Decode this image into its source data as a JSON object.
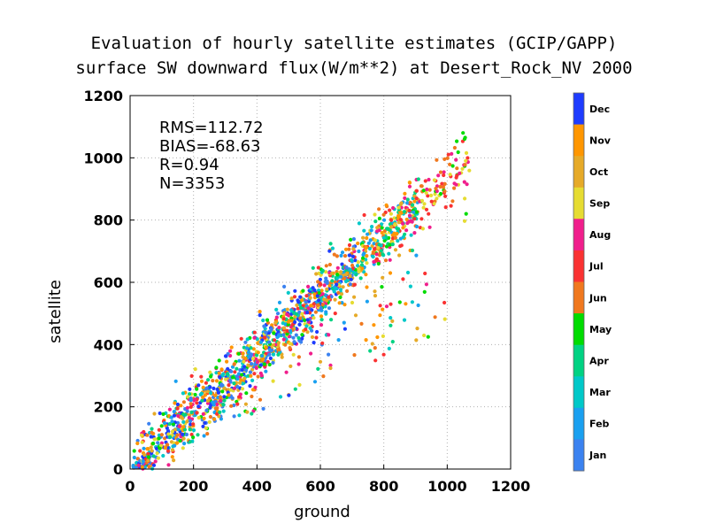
{
  "chart_data": {
    "type": "scatter",
    "title": "Evaluation of hourly satellite estimates (GCIP/GAPP)",
    "subtitle": "surface SW downward flux(W/m**2) at Desert_Rock_NV 2000",
    "xlabel": "ground",
    "ylabel": "satellite",
    "xlim": [
      0,
      1200
    ],
    "ylim": [
      0,
      1200
    ],
    "xticks": [
      "0",
      "200",
      "400",
      "600",
      "800",
      "1000",
      "1200"
    ],
    "yticks": [
      "0",
      "200",
      "400",
      "600",
      "800",
      "1000",
      "1200"
    ],
    "grid": true,
    "stats": [
      "RMS=112.72",
      "BIAS=-68.63",
      "R=0.94",
      "N=3353"
    ],
    "colorbar": {
      "placement": "right",
      "labels": [
        "Jan",
        "Feb",
        "Mar",
        "Apr",
        "May",
        "Jun",
        "Jul",
        "Aug",
        "Sep",
        "Oct",
        "Nov",
        "Dec"
      ],
      "colors": [
        "#3b82f0",
        "#1aa0f0",
        "#00c8c8",
        "#00d282",
        "#00dc00",
        "#f0781e",
        "#fa3232",
        "#f01e8c",
        "#e6dc32",
        "#e6aa28",
        "#ff9600",
        "#1e3cff"
      ]
    },
    "series_summary": {
      "n": 3353,
      "rms": 112.72,
      "bias": -68.63,
      "r": 0.94
    }
  }
}
